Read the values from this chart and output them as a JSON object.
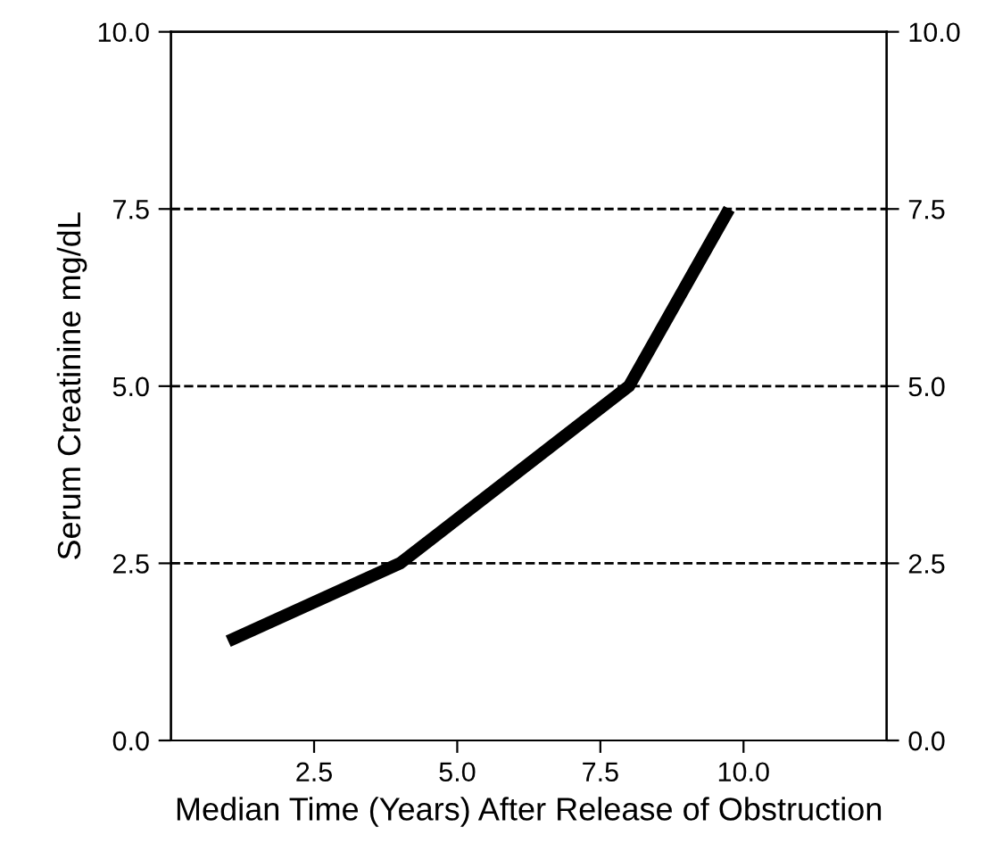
{
  "chart_data": {
    "type": "line",
    "xlabel": "Median Time (Years) After Release of Obstruction",
    "ylabel": "Serum Creatinine mg/dL",
    "series": [
      {
        "color": "#000000",
        "x": [
          1.0,
          4.0,
          8.0,
          9.75
        ],
        "values": [
          1.4,
          2.5,
          5.0,
          7.5
        ]
      }
    ],
    "xlim": [
      0,
      12.5
    ],
    "xticks": [
      {
        "value": 2.5,
        "label": "2.5"
      },
      {
        "value": 5,
        "label": "5.0"
      },
      {
        "value": 7.5,
        "label": "7.5"
      },
      {
        "value": 10,
        "label": "10.0"
      }
    ],
    "ylim": [
      0,
      10
    ],
    "yticks": [
      {
        "value": 0,
        "label": "0.0"
      },
      {
        "value": 2.5,
        "label": "2.5"
      },
      {
        "value": 5,
        "label": "5.0"
      },
      {
        "value": 7.5,
        "label": "7.5"
      },
      {
        "value": 10,
        "label": "10.0"
      }
    ],
    "y2lim": [
      0,
      10
    ],
    "y2ticks": [
      {
        "value": 0,
        "label": "0.0"
      },
      {
        "value": 2.5,
        "label": "2.5"
      },
      {
        "value": 5,
        "label": "5.0"
      },
      {
        "value": 7.5,
        "label": "7.5"
      },
      {
        "value": 10,
        "label": "10.0"
      }
    ],
    "ref_lines": [
      {
        "axis": "y",
        "value": 2.5,
        "color": "#000000",
        "line_style": "dashed"
      },
      {
        "axis": "y",
        "value": 5,
        "color": "#000000",
        "line_style": "dashed"
      },
      {
        "axis": "y",
        "value": 7.5,
        "color": "#000000",
        "line_style": "dashed"
      }
    ],
    "grid": false,
    "legend": false,
    "marker": "none",
    "line_style": "solid"
  }
}
